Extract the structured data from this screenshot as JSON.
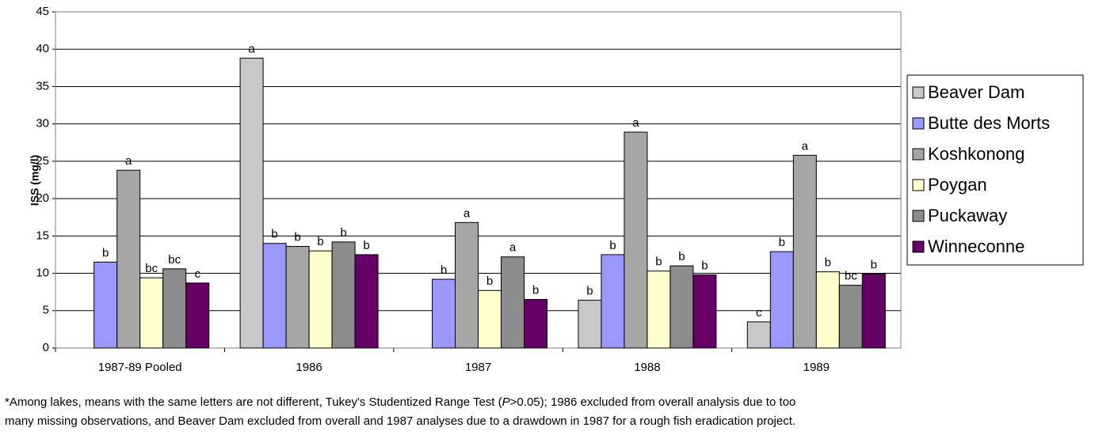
{
  "chart_data": {
    "type": "bar",
    "y_label": "ISS (mg/l)",
    "categories": [
      "1987-89 Pooled",
      "1986",
      "1987",
      "1988",
      "1989"
    ],
    "series": [
      {
        "name": "Beaver Dam",
        "color": "#c8c8c8",
        "values": [
          null,
          38.8,
          null,
          6.4,
          3.5
        ],
        "letters": [
          null,
          "a",
          null,
          "b",
          "c"
        ]
      },
      {
        "name": "Butte des Morts",
        "color": "#9999ff",
        "values": [
          11.5,
          14.0,
          9.2,
          12.5,
          12.9
        ],
        "letters": [
          "b",
          "b",
          "b",
          "b",
          "b"
        ]
      },
      {
        "name": "Koshkonong",
        "color": "#a6a6a6",
        "values": [
          23.8,
          13.6,
          16.8,
          28.9,
          25.8
        ],
        "letters": [
          "a",
          "b",
          "a",
          "a",
          "a"
        ]
      },
      {
        "name": "Poygan",
        "color": "#ffffcc",
        "values": [
          9.4,
          13.0,
          7.7,
          10.3,
          10.2
        ],
        "letters": [
          "bc",
          "b",
          "b",
          "b",
          "b"
        ]
      },
      {
        "name": "Puckaway",
        "color": "#8c8c8c",
        "values": [
          10.6,
          14.2,
          12.2,
          11.0,
          8.4
        ],
        "letters": [
          "bc",
          "b",
          "a",
          "b",
          "bc"
        ]
      },
      {
        "name": "Winneconne",
        "color": "#660066",
        "values": [
          8.7,
          12.5,
          6.5,
          9.8,
          9.9
        ],
        "letters": [
          "c",
          "b",
          "b",
          "b",
          "b"
        ]
      }
    ],
    "ylim": [
      0,
      45
    ],
    "yticks": [
      0,
      5,
      10,
      15,
      20,
      25,
      30,
      35,
      40,
      45
    ],
    "grid": true,
    "legend": "right",
    "footnote": {
      "line1": [
        "*Among lakes, means with the same letters are not different, Tukey's Studentized Range Test (",
        "P",
        ">0.05); 1986 excluded from overall analysis due to too"
      ],
      "line2": "many missing observations, and Beaver Dam excluded from overall and 1987 analyses due to a drawdown in 1987 for a rough fish eradication project."
    }
  }
}
